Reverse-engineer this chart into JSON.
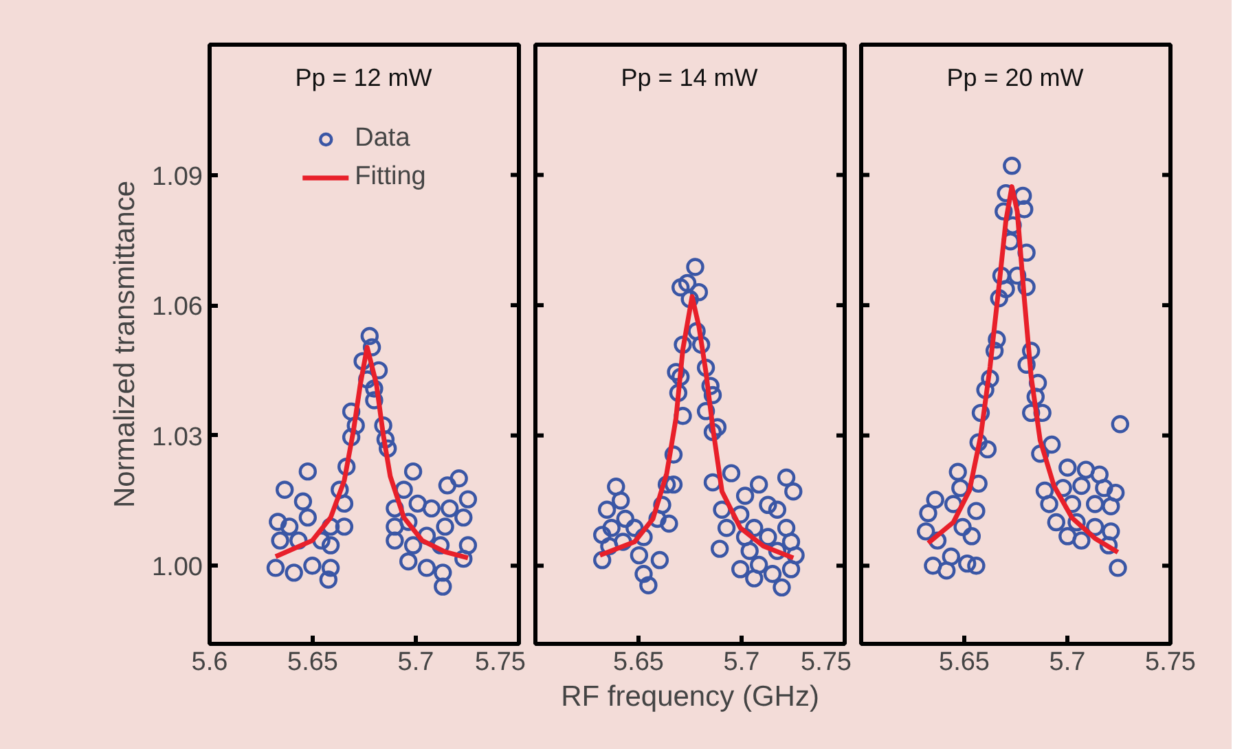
{
  "chart_data": [
    {
      "type": "scatter",
      "ylabel": "Normalized transmittance",
      "annotations": [
        "Pp = 12 mW"
      ],
      "xlim": [
        5.6,
        5.75
      ],
      "xticks": [
        5.6,
        5.65,
        5.7,
        5.75
      ],
      "ylim": [
        0.982,
        1.12
      ],
      "yticks": [
        {
          "value": 1.0,
          "label": "1.00"
        },
        1.03,
        1.06,
        1.09
      ],
      "grid": false,
      "legend": "top",
      "series": [
        {
          "name": "Data",
          "type": "scatter",
          "marker": "circle",
          "color": "#3a56a5",
          "x": [
            5.6776,
            5.6787,
            5.6742,
            5.682,
            5.6764,
            5.6798,
            5.6798,
            5.6687,
            5.6709,
            5.6687,
            5.6842,
            5.6853,
            5.6864,
            5.6664,
            5.6476,
            5.6364,
            5.6631,
            5.6453,
            5.6653,
            5.6331,
            5.6387,
            5.6476,
            5.6587,
            5.6653,
            5.6342,
            5.6431,
            5.6542,
            5.6587,
            5.632,
            5.6409,
            5.6498,
            5.6587,
            5.6576,
            5.6987,
            5.6942,
            5.7153,
            5.7209,
            5.7253,
            5.6898,
            5.7009,
            5.7076,
            5.7164,
            5.6898,
            5.6964,
            5.7053,
            5.7142,
            5.7231,
            5.6898,
            5.6987,
            5.712,
            5.7253,
            5.6964,
            5.7053,
            5.7131,
            5.7131,
            5.7231
          ],
          "values": [
            1.0529,
            1.0503,
            1.0471,
            1.045,
            1.0429,
            1.0408,
            1.0381,
            1.0355,
            1.0323,
            1.0296,
            1.0323,
            1.0291,
            1.027,
            1.0228,
            1.0217,
            1.0175,
            1.0175,
            1.0148,
            1.0143,
            1.0101,
            1.009,
            1.0111,
            1.009,
            1.009,
            1.0058,
            1.0058,
            1.0058,
            1.0047,
            0.9995,
            0.9984,
            1.0,
            0.9995,
            0.9968,
            1.0217,
            1.0175,
            1.0185,
            1.0201,
            1.0153,
            1.0132,
            1.0143,
            1.0132,
            1.0132,
            1.009,
            1.0101,
            1.0069,
            1.009,
            1.0111,
            1.0058,
            1.0047,
            1.0047,
            1.0047,
            1.001,
            0.9995,
            0.9984,
            0.9952,
            1.0016
          ]
        },
        {
          "name": "Fitting",
          "type": "line",
          "line_style": "solid",
          "color": "#e8202a",
          "x": [
            5.632,
            5.6498,
            5.6587,
            5.6653,
            5.6698,
            5.6731,
            5.6764,
            5.6809,
            5.6842,
            5.6876,
            5.6942,
            5.7031,
            5.7142,
            5.7253
          ],
          "values": [
            1.0021,
            1.0058,
            1.0111,
            1.0196,
            1.0312,
            1.0418,
            1.0503,
            1.0418,
            1.0302,
            1.0206,
            1.0111,
            1.0058,
            1.0032,
            1.0018
          ]
        }
      ]
    },
    {
      "type": "scatter",
      "xlabel": "RF frequency (GHz)",
      "annotations": [
        "Pp = 14 mW"
      ],
      "xlim": [
        5.6,
        5.75
      ],
      "xticks": [
        5.65,
        5.7,
        5.75
      ],
      "ylim": [
        0.982,
        1.12
      ],
      "yticks": [
        1.0,
        1.03,
        1.06,
        1.09
      ],
      "grid": false,
      "tick_labels": "x",
      "series": [
        {
          "type": "scatter",
          "marker": "circle",
          "color": "#3a56a5",
          "x": [
            5.6775,
            5.6737,
            5.6704,
            5.6793,
            5.6749,
            5.6782,
            5.6715,
            5.6804,
            5.6682,
            5.6827,
            5.6704,
            5.6849,
            5.6693,
            5.686,
            5.6715,
            5.6827,
            5.6883,
            5.667,
            5.686,
            5.6637,
            5.667,
            5.6615,
            5.6592,
            5.6648,
            5.6391,
            5.6347,
            5.6414,
            5.6324,
            5.6369,
            5.6436,
            5.6481,
            5.6525,
            5.6358,
            5.6425,
            5.6324,
            5.6503,
            5.6603,
            5.6525,
            5.6548,
            5.695,
            5.686,
            5.7084,
            5.7217,
            5.7251,
            5.7017,
            5.6905,
            5.6994,
            5.7128,
            5.7173,
            5.7217,
            5.7061,
            5.6927,
            5.7017,
            5.7128,
            5.724,
            5.6894,
            5.7039,
            5.7173,
            5.7262,
            5.6994,
            5.7084,
            5.715,
            5.724,
            5.7195,
            5.7061
          ],
          "values": [
            1.0688,
            1.0651,
            1.0641,
            1.063,
            1.0614,
            1.054,
            1.0509,
            1.0509,
            1.0446,
            1.0456,
            1.0435,
            1.0414,
            1.0398,
            1.0393,
            1.0345,
            1.0356,
            1.0319,
            1.0256,
            1.0308,
            1.0187,
            1.0187,
            1.014,
            1.0108,
            1.0097,
            1.0182,
            1.0129,
            1.015,
            1.0071,
            1.0087,
            1.0108,
            1.0087,
            1.0066,
            1.0045,
            1.0055,
            1.0013,
            1.0024,
            1.0013,
            0.9981,
            0.9955,
            1.0213,
            1.0192,
            1.0187,
            1.0203,
            1.0171,
            1.0161,
            1.0129,
            1.0118,
            1.014,
            1.0129,
            1.0087,
            1.0087,
            1.0087,
            1.0066,
            1.0066,
            1.0055,
            1.0039,
            1.0034,
            1.0034,
            1.0024,
            0.9992,
            1.0002,
            0.9981,
            0.9992,
            0.995,
            0.9971
          ]
        },
        {
          "type": "line",
          "line_style": "solid",
          "color": "#e8202a",
          "x": [
            5.6313,
            5.6481,
            5.657,
            5.6637,
            5.6682,
            5.6715,
            5.676,
            5.6793,
            5.6827,
            5.686,
            5.6905,
            5.6994,
            5.7106,
            5.7251
          ],
          "values": [
            1.0024,
            1.0055,
            1.0108,
            1.0213,
            1.034,
            1.0498,
            1.062,
            1.0551,
            1.0446,
            1.0319,
            1.0171,
            1.0087,
            1.0045,
            1.0018
          ]
        }
      ]
    },
    {
      "type": "scatter",
      "annotations": [
        "Pp = 20 mW"
      ],
      "xlim": [
        5.6,
        5.75
      ],
      "xticks": [
        5.65,
        5.7,
        5.75
      ],
      "ylim": [
        0.982,
        1.12
      ],
      "yticks": [
        1.0,
        1.03,
        1.06,
        1.09
      ],
      "grid": false,
      "tick_labels": "x",
      "series": [
        {
          "type": "scatter",
          "marker": "circle",
          "color": "#3a56a5",
          "x": [
            5.6731,
            5.6702,
            5.6784,
            5.6691,
            5.6791,
            5.6735,
            5.6724,
            5.6802,
            5.668,
            5.6757,
            5.6802,
            5.6669,
            5.6702,
            5.6658,
            5.6647,
            5.6824,
            5.6802,
            5.6857,
            5.6625,
            5.6602,
            5.6846,
            5.658,
            5.6824,
            5.6879,
            5.6569,
            5.6613,
            5.6469,
            5.6481,
            5.6569,
            5.6558,
            5.6359,
            5.6447,
            5.6325,
            5.6492,
            5.6536,
            5.6314,
            5.637,
            5.6436,
            5.6514,
            5.6348,
            5.6414,
            5.6558,
            5.7256,
            5.6924,
            5.6868,
            5.7001,
            5.709,
            5.7156,
            5.689,
            5.6979,
            5.7068,
            5.7178,
            5.7234,
            5.6912,
            5.7023,
            5.7134,
            5.7211,
            5.6946,
            5.7045,
            5.7134,
            5.7211,
            5.7068,
            5.72,
            5.7245,
            5.7001
          ],
          "values": [
            1.0921,
            1.0858,
            1.0852,
            1.0816,
            1.0821,
            1.0784,
            1.0747,
            1.0721,
            1.0668,
            1.0668,
            1.0642,
            1.0616,
            1.0637,
            1.0521,
            1.0495,
            1.0495,
            1.0463,
            1.0421,
            1.0431,
            1.0405,
            1.0389,
            1.0352,
            1.0352,
            1.0352,
            1.0284,
            1.0268,
            1.0216,
            1.0179,
            1.0189,
            1.0126,
            1.0152,
            1.0142,
            1.0121,
            1.0089,
            1.0068,
            1.0079,
            1.0058,
            1.0021,
            1.0005,
            1.0,
            0.9989,
            1.0,
            1.0326,
            1.0279,
            1.0258,
            1.0226,
            1.0221,
            1.021,
            1.0173,
            1.0179,
            1.0184,
            1.0179,
            1.0168,
            1.0142,
            1.0142,
            1.0142,
            1.0137,
            1.01,
            1.01,
            1.0089,
            1.0079,
            1.0058,
            1.0047,
            0.9995,
            1.0068
          ]
        },
        {
          "type": "line",
          "line_style": "solid",
          "color": "#e8202a",
          "x": [
            5.6325,
            5.6447,
            5.6525,
            5.658,
            5.6625,
            5.6669,
            5.6702,
            5.6731,
            5.6757,
            5.6791,
            5.6824,
            5.6868,
            5.6935,
            5.7023,
            5.7134,
            5.7245
          ],
          "values": [
            1.0052,
            1.01,
            1.0173,
            1.03,
            1.0458,
            1.0647,
            1.0795,
            1.0873,
            1.0816,
            1.0616,
            1.0437,
            1.0289,
            1.0184,
            1.011,
            1.0063,
            1.0031
          ]
        }
      ]
    }
  ]
}
